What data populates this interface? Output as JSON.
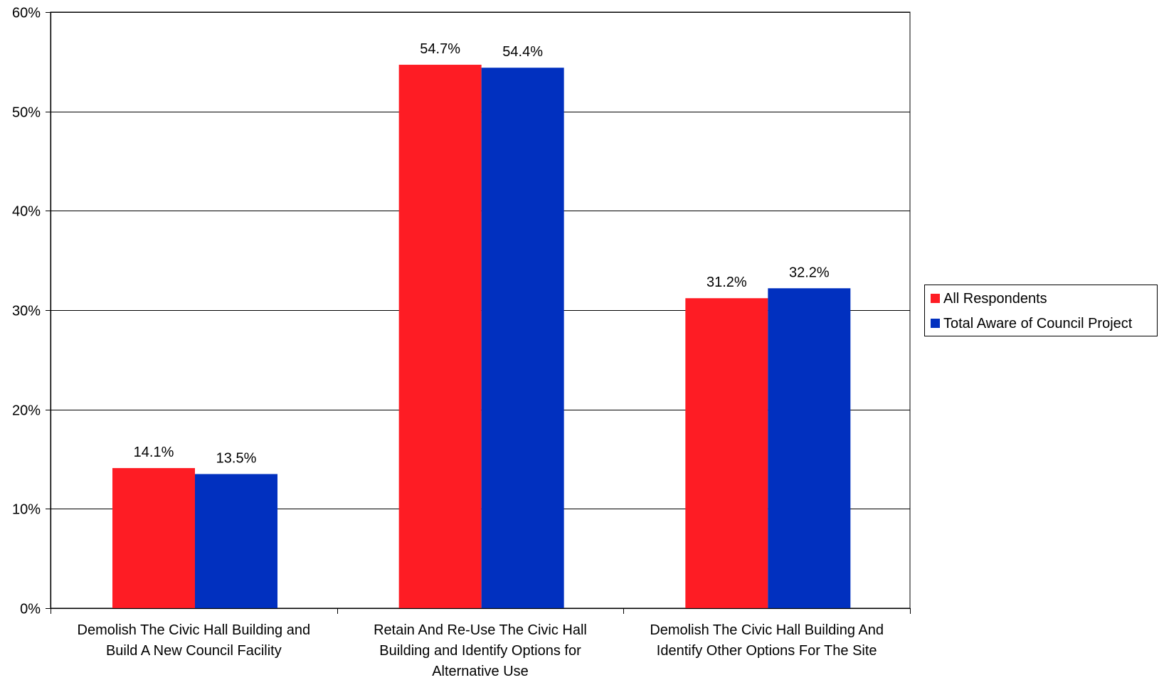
{
  "chart_data": {
    "type": "bar",
    "title": "",
    "xlabel": "",
    "ylabel": "",
    "categories": [
      [
        "Demolish The Civic Hall Building and",
        "Build A New Council Facility"
      ],
      [
        "Retain And Re-Use The Civic Hall",
        "Building and Identify Options for",
        "Alternative Use"
      ],
      [
        "Demolish The Civic Hall Building And",
        "Identify Other Options For The Site"
      ]
    ],
    "series": [
      {
        "name": "All Respondents",
        "color": "#fe1c24",
        "values": [
          14.1,
          54.7,
          31.2
        ],
        "labels": [
          "14.1%",
          "54.7%",
          "31.2%"
        ]
      },
      {
        "name": "Total Aware of Council Project",
        "color": "#0130bf",
        "values": [
          13.5,
          54.4,
          32.2
        ],
        "labels": [
          "13.5%",
          "54.4%",
          "32.2%"
        ]
      }
    ],
    "ylim": [
      0,
      60
    ],
    "yticks": [
      0,
      10,
      20,
      30,
      40,
      50,
      60
    ],
    "ytick_labels": [
      "0%",
      "10%",
      "20%",
      "30%",
      "40%",
      "50%",
      "60%"
    ],
    "grid": true,
    "legend_position": "right"
  }
}
